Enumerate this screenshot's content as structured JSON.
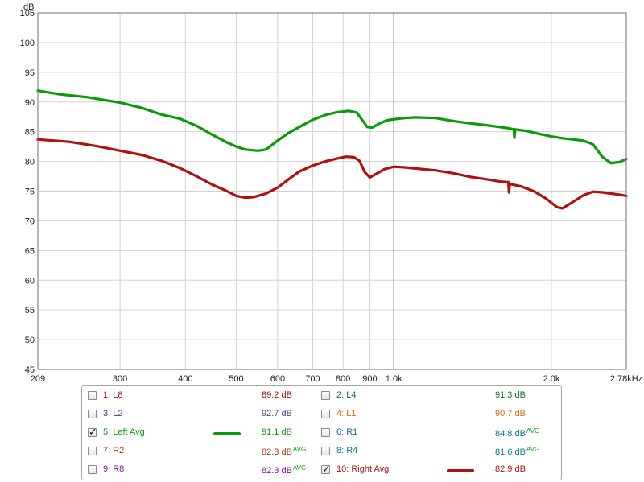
{
  "chart_data": {
    "type": "line",
    "ylabel": "dB",
    "x_scale": "log",
    "xlim": [
      209,
      2780
    ],
    "ylim": [
      45,
      105
    ],
    "grid": true,
    "x_ticks": [
      {
        "value": 209,
        "label": "209"
      },
      {
        "value": 300,
        "label": "300"
      },
      {
        "value": 400,
        "label": "400"
      },
      {
        "value": 500,
        "label": "500"
      },
      {
        "value": 600,
        "label": "600"
      },
      {
        "value": 700,
        "label": "700"
      },
      {
        "value": 800,
        "label": "800"
      },
      {
        "value": 900,
        "label": "900"
      },
      {
        "value": 1000,
        "label": "1.0k"
      },
      {
        "value": 2000,
        "label": "2.0k"
      },
      {
        "value": 2780,
        "label": "2.78kHz"
      }
    ],
    "y_ticks": [
      45,
      50,
      55,
      60,
      65,
      70,
      75,
      80,
      85,
      90,
      95,
      100,
      105
    ],
    "cursor_x": 1000,
    "series": [
      {
        "name": "5: Left Avg",
        "color": "#0a9a0a",
        "points": [
          [
            209,
            91.9
          ],
          [
            230,
            91.3
          ],
          [
            260,
            90.8
          ],
          [
            300,
            89.9
          ],
          [
            330,
            89.0
          ],
          [
            360,
            87.9
          ],
          [
            390,
            87.2
          ],
          [
            420,
            86.0
          ],
          [
            450,
            84.5
          ],
          [
            480,
            83.2
          ],
          [
            500,
            82.5
          ],
          [
            520,
            82.0
          ],
          [
            550,
            81.8
          ],
          [
            570,
            82.0
          ],
          [
            600,
            83.5
          ],
          [
            630,
            84.8
          ],
          [
            660,
            85.8
          ],
          [
            700,
            87.0
          ],
          [
            740,
            87.8
          ],
          [
            780,
            88.3
          ],
          [
            820,
            88.5
          ],
          [
            850,
            88.2
          ],
          [
            870,
            87.0
          ],
          [
            890,
            85.8
          ],
          [
            910,
            85.7
          ],
          [
            940,
            86.4
          ],
          [
            970,
            86.9
          ],
          [
            1000,
            87.1
          ],
          [
            1050,
            87.3
          ],
          [
            1100,
            87.4
          ],
          [
            1200,
            87.3
          ],
          [
            1300,
            86.8
          ],
          [
            1400,
            86.4
          ],
          [
            1500,
            86.1
          ],
          [
            1650,
            85.6
          ],
          [
            1695,
            85.4
          ],
          [
            1700,
            84.0
          ],
          [
            1705,
            85.4
          ],
          [
            1800,
            85.1
          ],
          [
            1900,
            84.6
          ],
          [
            2000,
            84.2
          ],
          [
            2100,
            83.9
          ],
          [
            2200,
            83.7
          ],
          [
            2300,
            83.5
          ],
          [
            2400,
            82.9
          ],
          [
            2500,
            80.8
          ],
          [
            2600,
            79.7
          ],
          [
            2700,
            79.9
          ],
          [
            2780,
            80.4
          ]
        ]
      },
      {
        "name": "10: Right Avg",
        "color": "#b01010",
        "points": [
          [
            209,
            83.7
          ],
          [
            240,
            83.3
          ],
          [
            270,
            82.6
          ],
          [
            300,
            81.8
          ],
          [
            330,
            81.1
          ],
          [
            360,
            80.1
          ],
          [
            390,
            78.9
          ],
          [
            420,
            77.5
          ],
          [
            450,
            76.1
          ],
          [
            480,
            75.0
          ],
          [
            500,
            74.2
          ],
          [
            520,
            73.9
          ],
          [
            540,
            74.0
          ],
          [
            570,
            74.6
          ],
          [
            600,
            75.6
          ],
          [
            630,
            77.0
          ],
          [
            660,
            78.3
          ],
          [
            700,
            79.3
          ],
          [
            740,
            80.0
          ],
          [
            780,
            80.5
          ],
          [
            810,
            80.8
          ],
          [
            840,
            80.7
          ],
          [
            860,
            80.1
          ],
          [
            880,
            78.2
          ],
          [
            900,
            77.3
          ],
          [
            930,
            78.0
          ],
          [
            960,
            78.7
          ],
          [
            1000,
            79.1
          ],
          [
            1050,
            79.0
          ],
          [
            1100,
            78.8
          ],
          [
            1200,
            78.5
          ],
          [
            1300,
            78.0
          ],
          [
            1400,
            77.4
          ],
          [
            1500,
            77.0
          ],
          [
            1600,
            76.6
          ],
          [
            1655,
            76.5
          ],
          [
            1660,
            74.8
          ],
          [
            1665,
            76.2
          ],
          [
            1750,
            75.8
          ],
          [
            1850,
            75.0
          ],
          [
            1950,
            73.8
          ],
          [
            2050,
            72.3
          ],
          [
            2100,
            72.1
          ],
          [
            2200,
            73.2
          ],
          [
            2300,
            74.3
          ],
          [
            2400,
            74.9
          ],
          [
            2500,
            74.8
          ],
          [
            2600,
            74.6
          ],
          [
            2700,
            74.4
          ],
          [
            2780,
            74.2
          ]
        ]
      }
    ]
  },
  "legend": {
    "items": [
      {
        "label": "1: L8",
        "value": "89.2 dB",
        "avg": "",
        "checked": false,
        "color": "#a01010",
        "value_color": "#a01010"
      },
      {
        "label": "2: L4",
        "value": "91.3 dB",
        "avg": "",
        "checked": false,
        "color": "#107030",
        "value_color": "#107030"
      },
      {
        "label": "3: L2",
        "value": "92.7 dB",
        "avg": "",
        "checked": false,
        "color": "#4040a0",
        "value_color": "#4040a0"
      },
      {
        "label": "4: L1",
        "value": "90.7 dB",
        "avg": "",
        "checked": false,
        "color": "#d07010",
        "value_color": "#d07010"
      },
      {
        "label": "5: Left Avg",
        "value": "91.1 dB",
        "avg": "",
        "checked": true,
        "color": "#0a9a0a",
        "value_color": "#0a9a0a",
        "swatch": true
      },
      {
        "label": "6: R1",
        "value": "84.8 dB",
        "avg": "AVG",
        "checked": false,
        "color": "#106a9a",
        "value_color": "#106a9a"
      },
      {
        "label": "7: R2",
        "value": "82.3 dB",
        "avg": "AVG",
        "checked": false,
        "color": "#a04010",
        "value_color": "#a04010"
      },
      {
        "label": "8: R4",
        "value": "81.6 dB",
        "avg": "AVG",
        "checked": false,
        "color": "#108080",
        "value_color": "#108080"
      },
      {
        "label": "9: R8",
        "value": "82.3 dB",
        "avg": "AVG",
        "checked": false,
        "color": "#8a10a0",
        "value_color": "#8a10a0"
      },
      {
        "label": "10: Right Avg",
        "value": "82.9 dB",
        "avg": "",
        "checked": true,
        "color": "#b01010",
        "value_color": "#b01010",
        "swatch": true
      }
    ],
    "avg_color": "#0a9a0a",
    "check_glyph": "✓"
  }
}
